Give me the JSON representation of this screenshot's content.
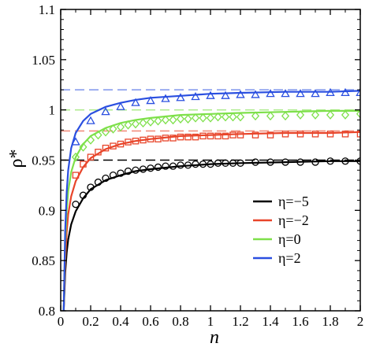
{
  "chart_data": {
    "type": "line",
    "title": "",
    "xlabel": "n",
    "ylabel": "ρ*",
    "xlim": [
      0,
      2
    ],
    "ylim": [
      0.8,
      1.1
    ],
    "xticks": [
      "0",
      "0.2",
      "0.4",
      "0.6",
      "0.8",
      "1",
      "1.2",
      "1.4",
      "1.6",
      "1.8",
      "2"
    ],
    "yticks": [
      "0.8",
      "0.85",
      "0.9",
      "0.95",
      "1",
      "1.05",
      "1.1"
    ],
    "legend_position": "bottom-right",
    "grid": false,
    "series": [
      {
        "name": "η=−5",
        "color": "#000000",
        "marker": "circle",
        "asymptote": 0.95,
        "curve": [
          [
            0.02,
            0.8
          ],
          [
            0.03,
            0.838
          ],
          [
            0.04,
            0.858
          ],
          [
            0.05,
            0.871
          ],
          [
            0.07,
            0.886
          ],
          [
            0.1,
            0.899
          ],
          [
            0.15,
            0.912
          ],
          [
            0.2,
            0.921
          ],
          [
            0.3,
            0.93
          ],
          [
            0.4,
            0.935
          ],
          [
            0.5,
            0.939
          ],
          [
            0.6,
            0.941
          ],
          [
            0.8,
            0.944
          ],
          [
            1.0,
            0.946
          ],
          [
            1.2,
            0.947
          ],
          [
            1.5,
            0.948
          ],
          [
            1.8,
            0.949
          ],
          [
            2.0,
            0.949
          ]
        ],
        "points": [
          [
            0.1,
            0.906
          ],
          [
            0.15,
            0.915
          ],
          [
            0.2,
            0.923
          ],
          [
            0.25,
            0.928
          ],
          [
            0.3,
            0.932
          ],
          [
            0.35,
            0.935
          ],
          [
            0.4,
            0.937
          ],
          [
            0.45,
            0.939
          ],
          [
            0.5,
            0.94
          ],
          [
            0.55,
            0.941
          ],
          [
            0.6,
            0.942
          ],
          [
            0.65,
            0.943
          ],
          [
            0.7,
            0.944
          ],
          [
            0.75,
            0.944
          ],
          [
            0.8,
            0.945
          ],
          [
            0.85,
            0.945
          ],
          [
            0.9,
            0.946
          ],
          [
            0.95,
            0.946
          ],
          [
            1.0,
            0.946
          ],
          [
            1.05,
            0.947
          ],
          [
            1.1,
            0.947
          ],
          [
            1.15,
            0.947
          ],
          [
            1.2,
            0.947
          ],
          [
            1.3,
            0.948
          ],
          [
            1.4,
            0.948
          ],
          [
            1.5,
            0.948
          ],
          [
            1.6,
            0.948
          ],
          [
            1.7,
            0.948
          ],
          [
            1.8,
            0.949
          ],
          [
            1.9,
            0.949
          ],
          [
            2.0,
            0.949
          ]
        ]
      },
      {
        "name": "η=−2",
        "color": "#e8452a",
        "marker": "square",
        "asymptote": 0.979,
        "curve": [
          [
            0.02,
            0.8
          ],
          [
            0.03,
            0.85
          ],
          [
            0.04,
            0.878
          ],
          [
            0.05,
            0.896
          ],
          [
            0.07,
            0.914
          ],
          [
            0.1,
            0.929
          ],
          [
            0.15,
            0.943
          ],
          [
            0.2,
            0.952
          ],
          [
            0.3,
            0.961
          ],
          [
            0.4,
            0.966
          ],
          [
            0.5,
            0.969
          ],
          [
            0.6,
            0.971
          ],
          [
            0.8,
            0.974
          ],
          [
            1.0,
            0.975
          ],
          [
            1.2,
            0.976
          ],
          [
            1.5,
            0.977
          ],
          [
            1.8,
            0.977
          ],
          [
            2.0,
            0.978
          ]
        ],
        "points": [
          [
            0.1,
            0.935
          ],
          [
            0.15,
            0.946
          ],
          [
            0.2,
            0.953
          ],
          [
            0.25,
            0.958
          ],
          [
            0.3,
            0.962
          ],
          [
            0.35,
            0.964
          ],
          [
            0.4,
            0.966
          ],
          [
            0.45,
            0.968
          ],
          [
            0.5,
            0.969
          ],
          [
            0.55,
            0.97
          ],
          [
            0.6,
            0.971
          ],
          [
            0.65,
            0.971
          ],
          [
            0.7,
            0.972
          ],
          [
            0.75,
            0.972
          ],
          [
            0.8,
            0.973
          ],
          [
            0.85,
            0.973
          ],
          [
            0.9,
            0.973
          ],
          [
            0.95,
            0.974
          ],
          [
            1.0,
            0.974
          ],
          [
            1.05,
            0.974
          ],
          [
            1.1,
            0.974
          ],
          [
            1.15,
            0.975
          ],
          [
            1.2,
            0.975
          ],
          [
            1.3,
            0.975
          ],
          [
            1.4,
            0.975
          ],
          [
            1.5,
            0.976
          ],
          [
            1.6,
            0.976
          ],
          [
            1.7,
            0.976
          ],
          [
            1.8,
            0.976
          ],
          [
            1.9,
            0.976
          ],
          [
            2.0,
            0.976
          ]
        ]
      },
      {
        "name": "η=0",
        "color": "#7ee04a",
        "marker": "diamond",
        "asymptote": 1.0,
        "curve": [
          [
            0.02,
            0.8
          ],
          [
            0.03,
            0.868
          ],
          [
            0.04,
            0.9
          ],
          [
            0.05,
            0.919
          ],
          [
            0.07,
            0.938
          ],
          [
            0.1,
            0.953
          ],
          [
            0.15,
            0.966
          ],
          [
            0.2,
            0.974
          ],
          [
            0.3,
            0.982
          ],
          [
            0.4,
            0.987
          ],
          [
            0.5,
            0.99
          ],
          [
            0.6,
            0.992
          ],
          [
            0.8,
            0.995
          ],
          [
            1.0,
            0.996
          ],
          [
            1.2,
            0.997
          ],
          [
            1.5,
            0.998
          ],
          [
            1.8,
            0.999
          ],
          [
            2.0,
            0.999
          ]
        ],
        "points": [
          [
            0.1,
            0.953
          ],
          [
            0.15,
            0.963
          ],
          [
            0.2,
            0.97
          ],
          [
            0.25,
            0.975
          ],
          [
            0.3,
            0.978
          ],
          [
            0.35,
            0.981
          ],
          [
            0.4,
            0.983
          ],
          [
            0.45,
            0.985
          ],
          [
            0.5,
            0.986
          ],
          [
            0.55,
            0.987
          ],
          [
            0.6,
            0.988
          ],
          [
            0.65,
            0.989
          ],
          [
            0.7,
            0.99
          ],
          [
            0.75,
            0.99
          ],
          [
            0.8,
            0.991
          ],
          [
            0.85,
            0.991
          ],
          [
            0.9,
            0.992
          ],
          [
            0.95,
            0.992
          ],
          [
            1.0,
            0.992
          ],
          [
            1.05,
            0.993
          ],
          [
            1.1,
            0.993
          ],
          [
            1.15,
            0.993
          ],
          [
            1.2,
            0.993
          ],
          [
            1.3,
            0.994
          ],
          [
            1.4,
            0.994
          ],
          [
            1.5,
            0.994
          ],
          [
            1.6,
            0.995
          ],
          [
            1.7,
            0.995
          ],
          [
            1.8,
            0.995
          ],
          [
            1.9,
            0.995
          ],
          [
            2.0,
            0.996
          ]
        ]
      },
      {
        "name": "η=2",
        "color": "#2a4fe0",
        "marker": "triangle",
        "asymptote": 1.02,
        "curve": [
          [
            0.02,
            0.8
          ],
          [
            0.03,
            0.88
          ],
          [
            0.04,
            0.918
          ],
          [
            0.05,
            0.94
          ],
          [
            0.07,
            0.962
          ],
          [
            0.1,
            0.977
          ],
          [
            0.15,
            0.989
          ],
          [
            0.2,
            0.996
          ],
          [
            0.3,
            1.003
          ],
          [
            0.4,
            1.007
          ],
          [
            0.5,
            1.01
          ],
          [
            0.6,
            1.012
          ],
          [
            0.8,
            1.014
          ],
          [
            1.0,
            1.016
          ],
          [
            1.2,
            1.017
          ],
          [
            1.5,
            1.018
          ],
          [
            1.8,
            1.018
          ],
          [
            2.0,
            1.019
          ]
        ],
        "points": [
          [
            0.1,
            0.968
          ],
          [
            0.2,
            0.989
          ],
          [
            0.3,
            0.998
          ],
          [
            0.4,
            1.003
          ],
          [
            0.5,
            1.007
          ],
          [
            0.6,
            1.009
          ],
          [
            0.7,
            1.011
          ],
          [
            0.8,
            1.012
          ],
          [
            0.9,
            1.013
          ],
          [
            1.0,
            1.014
          ],
          [
            1.1,
            1.014
          ],
          [
            1.2,
            1.015
          ],
          [
            1.3,
            1.015
          ],
          [
            1.4,
            1.016
          ],
          [
            1.5,
            1.016
          ],
          [
            1.6,
            1.016
          ],
          [
            1.7,
            1.016
          ],
          [
            1.8,
            1.017
          ],
          [
            1.9,
            1.017
          ],
          [
            2.0,
            1.017
          ]
        ]
      }
    ]
  }
}
